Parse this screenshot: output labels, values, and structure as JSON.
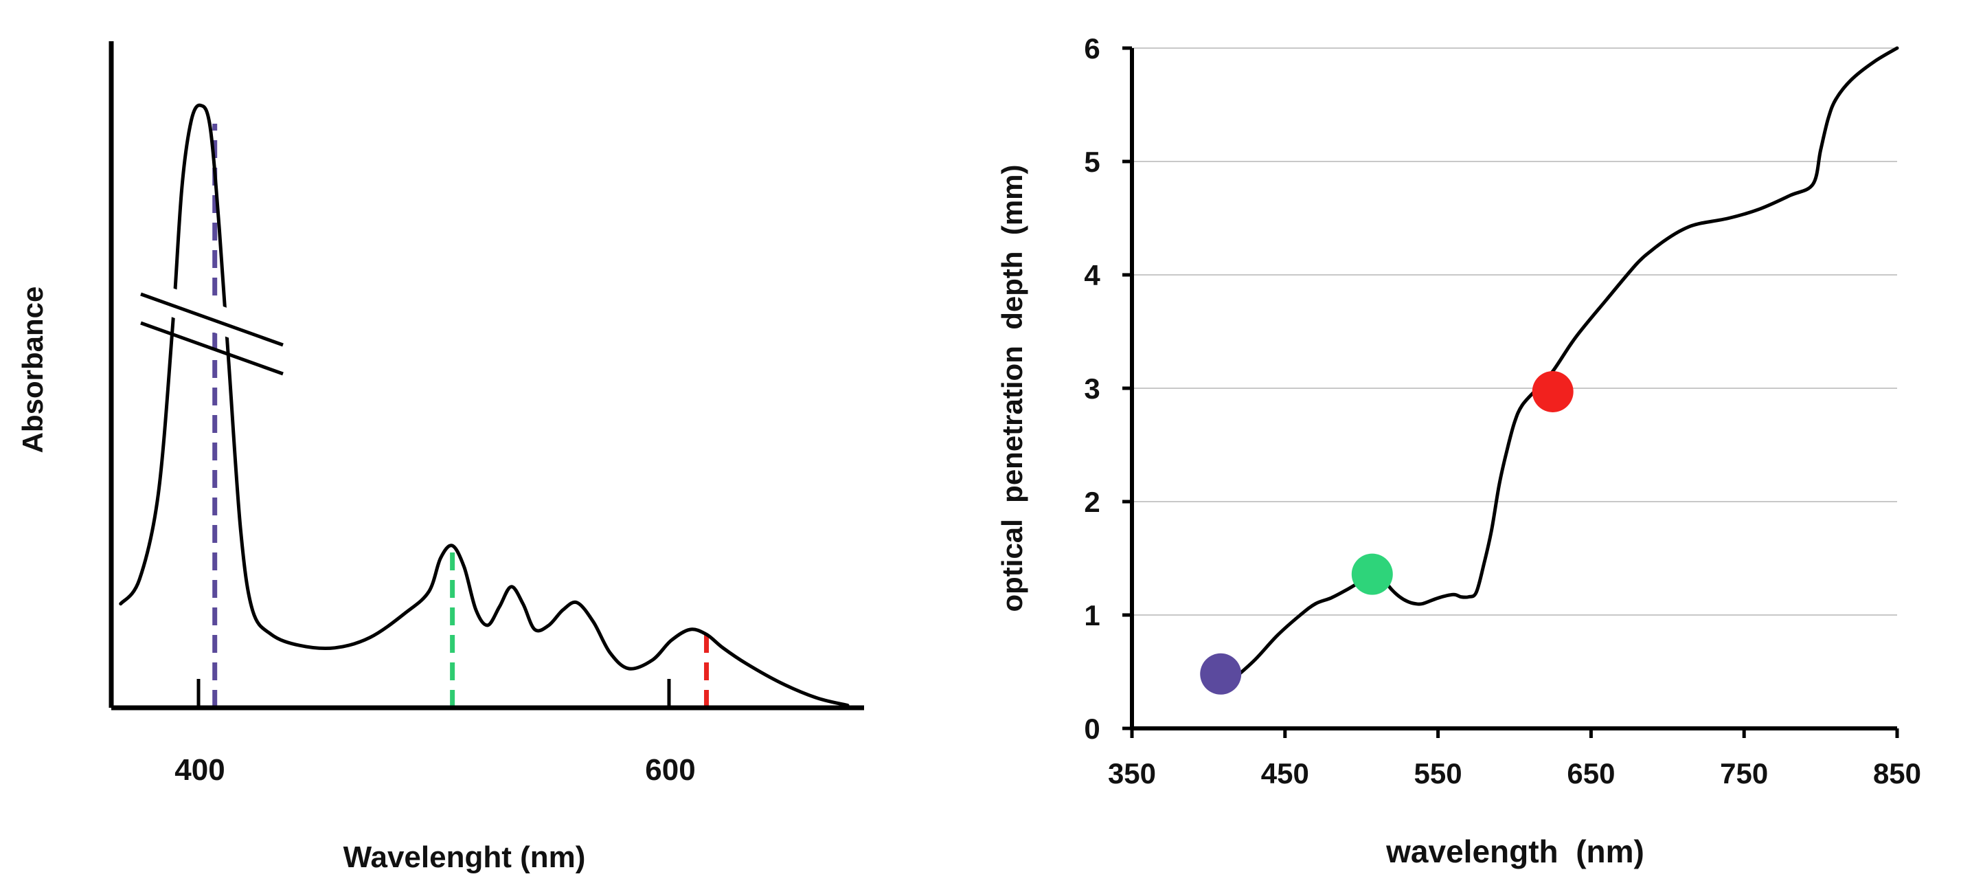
{
  "chart_data": [
    {
      "type": "line",
      "title": "",
      "xlabel": "Wavelenght (nm)",
      "ylabel": "Absorbance",
      "xlim": [
        360,
        680
      ],
      "ylim": [
        0,
        1
      ],
      "grid": false,
      "x_ticks": [
        400,
        600
      ],
      "x_tick_labels": [
        "400",
        "600"
      ],
      "axis_break": true,
      "series": [
        {
          "name": "Absorbance spectrum",
          "color": "#000000",
          "x": [
            364,
            372,
            380,
            386,
            390,
            394,
            398,
            402,
            406,
            410,
            415,
            420,
            428,
            440,
            455,
            470,
            485,
            495,
            500,
            505,
            510,
            515,
            520,
            525,
            530,
            535,
            540,
            546,
            552,
            558,
            565,
            572,
            580,
            590,
            598,
            606,
            613,
            620,
            630,
            645,
            660,
            673
          ],
          "y": [
            0.17,
            0.21,
            0.35,
            0.62,
            0.85,
            0.96,
            0.985,
            0.95,
            0.78,
            0.56,
            0.29,
            0.16,
            0.12,
            0.102,
            0.098,
            0.115,
            0.155,
            0.19,
            0.245,
            0.265,
            0.23,
            0.16,
            0.135,
            0.165,
            0.198,
            0.17,
            0.128,
            0.135,
            0.16,
            0.172,
            0.14,
            0.09,
            0.064,
            0.078,
            0.11,
            0.128,
            0.12,
            0.098,
            0.072,
            0.04,
            0.016,
            0.004
          ]
        }
      ],
      "markers": [
        {
          "name": "violet excitation",
          "x": 404,
          "color": "#5a4a9a",
          "y_top": 0.955
        },
        {
          "name": "green excitation",
          "x": 505,
          "color": "#2ecc71",
          "y_top": 0.26
        },
        {
          "name": "red excitation",
          "x": 613,
          "color": "#e8231f",
          "y_top": 0.12
        }
      ],
      "minor_ticks": [
        400,
        600
      ]
    },
    {
      "type": "line",
      "title": "",
      "xlabel": "wavelength  (nm)",
      "ylabel": "optical  penetration  depth  (mm)",
      "xlim": [
        350,
        850
      ],
      "ylim": [
        0,
        6
      ],
      "grid": true,
      "x_ticks": [
        350,
        450,
        550,
        650,
        750,
        850
      ],
      "x_tick_labels": [
        "350",
        "450",
        "550",
        "650",
        "750",
        "850"
      ],
      "y_ticks": [
        0,
        1,
        2,
        3,
        4,
        5,
        6
      ],
      "y_tick_labels": [
        "0",
        "1",
        "2",
        "3",
        "4",
        "5",
        "6"
      ],
      "series": [
        {
          "name": "optical penetration depth",
          "color": "#000000",
          "x": [
            415,
            430,
            445,
            460,
            470,
            480,
            490,
            500,
            505,
            510,
            515,
            520,
            525,
            530,
            535,
            540,
            550,
            560,
            565,
            570,
            575,
            580,
            585,
            590,
            595,
            600,
            605,
            615,
            625,
            640,
            660,
            680,
            690,
            700,
            710,
            720,
            740,
            760,
            780,
            795,
            800,
            805,
            810,
            820,
            835,
            850
          ],
          "y": [
            0.42,
            0.6,
            0.82,
            1.0,
            1.1,
            1.15,
            1.22,
            1.3,
            1.34,
            1.34,
            1.3,
            1.22,
            1.16,
            1.12,
            1.1,
            1.1,
            1.15,
            1.18,
            1.16,
            1.16,
            1.2,
            1.45,
            1.75,
            2.15,
            2.45,
            2.7,
            2.85,
            3.0,
            3.15,
            3.45,
            3.78,
            4.1,
            4.22,
            4.32,
            4.4,
            4.45,
            4.5,
            4.58,
            4.7,
            4.8,
            5.1,
            5.38,
            5.55,
            5.72,
            5.88,
            6.0
          ]
        }
      ],
      "points": [
        {
          "name": "violet",
          "x": 408,
          "y": 0.48,
          "color": "#5b4a9e"
        },
        {
          "name": "green",
          "x": 507,
          "y": 1.36,
          "color": "#2ed47a"
        },
        {
          "name": "red",
          "x": 625,
          "y": 2.97,
          "color": "#f2211e"
        }
      ]
    }
  ]
}
